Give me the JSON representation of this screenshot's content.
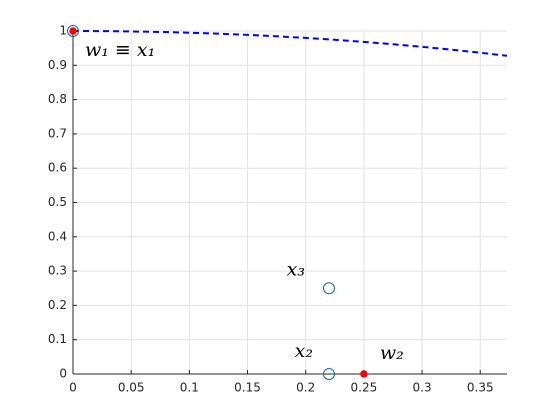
{
  "chart_data": {
    "type": "line",
    "xlim": [
      0,
      0.373
    ],
    "ylim": [
      0,
      1
    ],
    "xticks": [
      0,
      0.05,
      0.1,
      0.15,
      0.2,
      0.25,
      0.3,
      0.35
    ],
    "yticks": [
      0,
      0.1,
      0.2,
      0.3,
      0.4,
      0.5,
      0.6,
      0.7,
      0.8,
      0.9,
      1
    ],
    "grid": true,
    "series": [
      {
        "style": "dashed",
        "color": "#0000ff",
        "x": [
          0,
          0.025,
          0.05,
          0.075,
          0.1,
          0.125,
          0.15,
          0.175,
          0.2,
          0.225,
          0.25,
          0.275,
          0.3,
          0.325,
          0.35,
          0.373
        ],
        "values": [
          1,
          0.9997,
          0.9987,
          0.9972,
          0.995,
          0.9922,
          0.9887,
          0.9846,
          0.9798,
          0.9744,
          0.9682,
          0.9614,
          0.9539,
          0.9457,
          0.9367,
          0.9278
        ]
      },
      {
        "style": "circle",
        "color": "#0f6f8f",
        "x": [
          0,
          0.22,
          0.22
        ],
        "values": [
          1,
          0.25,
          0
        ],
        "point_labels": [
          "w₁ ≡ x₁",
          "x₃",
          "x₂"
        ]
      },
      {
        "style": "dot",
        "color": "#ff0000",
        "x": [
          0,
          0.25
        ],
        "values": [
          1,
          0
        ],
        "point_labels": [
          null,
          "w₂"
        ]
      }
    ]
  }
}
